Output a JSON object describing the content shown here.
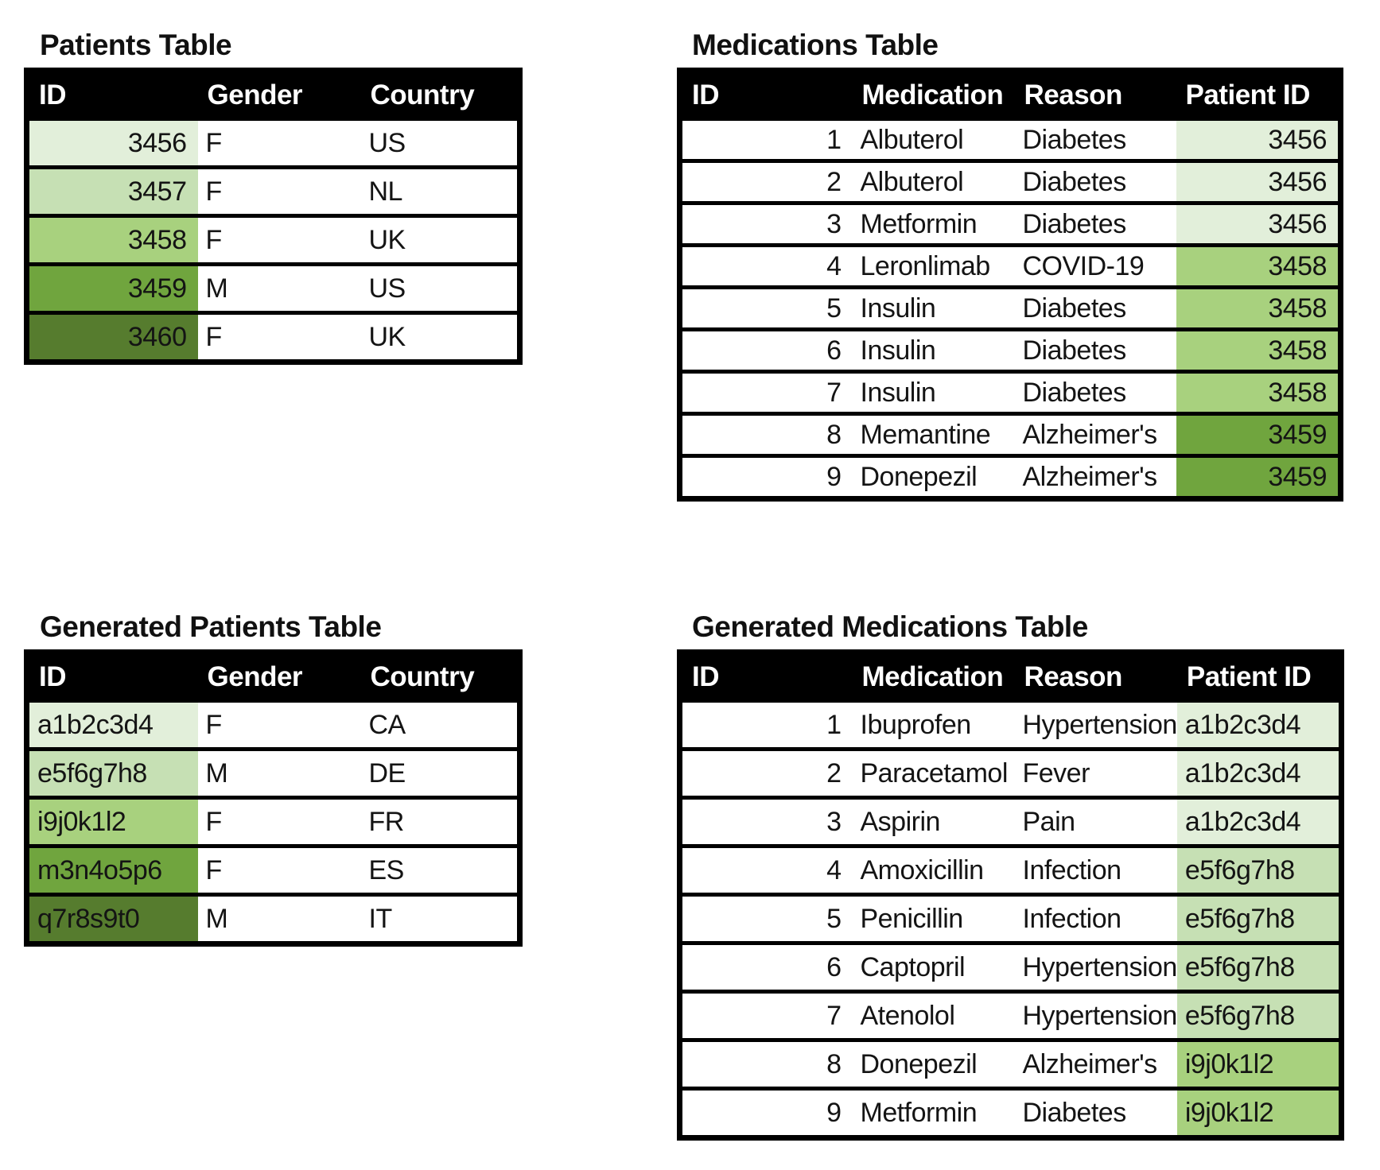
{
  "palette": {
    "header_bg": "#000000",
    "header_text": "#ffffff",
    "shade_1": "#e2efda",
    "shade_2": "#c6e0b4",
    "shade_3": "#a8d17e",
    "shade_4": "#70a53e",
    "shade_5": "#567c2e"
  },
  "tables": [
    {
      "title": "Patients Table",
      "columns": [
        {
          "label": "ID",
          "align": "right"
        },
        {
          "label": "Gender",
          "align": "left"
        },
        {
          "label": "Country",
          "align": "left"
        }
      ],
      "shaded_col": 0,
      "rows": [
        {
          "cells": [
            "3456",
            "F",
            "US"
          ],
          "shade": "#e2efda"
        },
        {
          "cells": [
            "3457",
            "F",
            "NL"
          ],
          "shade": "#c6e0b4"
        },
        {
          "cells": [
            "3458",
            "F",
            "UK"
          ],
          "shade": "#a8d17e"
        },
        {
          "cells": [
            "3459",
            "M",
            "US"
          ],
          "shade": "#70a53e"
        },
        {
          "cells": [
            "3460",
            "F",
            "UK"
          ],
          "shade": "#567c2e"
        }
      ]
    },
    {
      "title": "Medications Table",
      "columns": [
        {
          "label": "ID",
          "align": "right"
        },
        {
          "label": "Medication",
          "align": "left"
        },
        {
          "label": "Reason",
          "align": "left"
        },
        {
          "label": "Patient ID",
          "align": "right"
        }
      ],
      "shaded_col": 3,
      "rows": [
        {
          "cells": [
            "1",
            "Albuterol",
            "Diabetes",
            "3456"
          ],
          "shade": "#e2efda"
        },
        {
          "cells": [
            "2",
            "Albuterol",
            "Diabetes",
            "3456"
          ],
          "shade": "#e2efda"
        },
        {
          "cells": [
            "3",
            "Metformin",
            "Diabetes",
            "3456"
          ],
          "shade": "#e2efda"
        },
        {
          "cells": [
            "4",
            "Leronlimab",
            "COVID-19",
            "3458"
          ],
          "shade": "#a8d17e"
        },
        {
          "cells": [
            "5",
            "Insulin",
            "Diabetes",
            "3458"
          ],
          "shade": "#a8d17e"
        },
        {
          "cells": [
            "6",
            "Insulin",
            "Diabetes",
            "3458"
          ],
          "shade": "#a8d17e"
        },
        {
          "cells": [
            "7",
            "Insulin",
            "Diabetes",
            "3458"
          ],
          "shade": "#a8d17e"
        },
        {
          "cells": [
            "8",
            "Memantine",
            "Alzheimer's",
            "3459"
          ],
          "shade": "#70a53e"
        },
        {
          "cells": [
            "9",
            "Donepezil",
            "Alzheimer's",
            "3459"
          ],
          "shade": "#70a53e"
        }
      ]
    },
    {
      "title": "Generated Patients Table",
      "columns": [
        {
          "label": "ID",
          "align": "left"
        },
        {
          "label": "Gender",
          "align": "left"
        },
        {
          "label": "Country",
          "align": "left"
        }
      ],
      "shaded_col": 0,
      "rows": [
        {
          "cells": [
            "a1b2c3d4",
            "F",
            "CA"
          ],
          "shade": "#e2efda"
        },
        {
          "cells": [
            "e5f6g7h8",
            "M",
            "DE"
          ],
          "shade": "#c6e0b4"
        },
        {
          "cells": [
            "i9j0k1l2",
            "F",
            "FR"
          ],
          "shade": "#a8d17e"
        },
        {
          "cells": [
            "m3n4o5p6",
            "F",
            "ES"
          ],
          "shade": "#70a53e"
        },
        {
          "cells": [
            "q7r8s9t0",
            "M",
            "IT"
          ],
          "shade": "#567c2e"
        }
      ]
    },
    {
      "title": "Generated Medications Table",
      "columns": [
        {
          "label": "ID",
          "align": "right"
        },
        {
          "label": "Medication",
          "align": "left"
        },
        {
          "label": "Reason",
          "align": "left"
        },
        {
          "label": "Patient ID",
          "align": "left"
        }
      ],
      "shaded_col": 3,
      "rows": [
        {
          "cells": [
            "1",
            "Ibuprofen",
            "Hypertension",
            "a1b2c3d4"
          ],
          "shade": "#e2efda"
        },
        {
          "cells": [
            "2",
            "Paracetamol",
            "Fever",
            "a1b2c3d4"
          ],
          "shade": "#e2efda"
        },
        {
          "cells": [
            "3",
            "Aspirin",
            "Pain",
            "a1b2c3d4"
          ],
          "shade": "#e2efda"
        },
        {
          "cells": [
            "4",
            "Amoxicillin",
            "Infection",
            "e5f6g7h8"
          ],
          "shade": "#c6e0b4"
        },
        {
          "cells": [
            "5",
            "Penicillin",
            "Infection",
            "e5f6g7h8"
          ],
          "shade": "#c6e0b4"
        },
        {
          "cells": [
            "6",
            "Captopril",
            "Hypertension",
            "e5f6g7h8"
          ],
          "shade": "#c6e0b4"
        },
        {
          "cells": [
            "7",
            "Atenolol",
            "Hypertension",
            "e5f6g7h8"
          ],
          "shade": "#c6e0b4"
        },
        {
          "cells": [
            "8",
            "Donepezil",
            "Alzheimer's",
            "i9j0k1l2"
          ],
          "shade": "#a8d17e"
        },
        {
          "cells": [
            "9",
            "Metformin",
            "Diabetes",
            "i9j0k1l2"
          ],
          "shade": "#a8d17e"
        }
      ]
    }
  ]
}
